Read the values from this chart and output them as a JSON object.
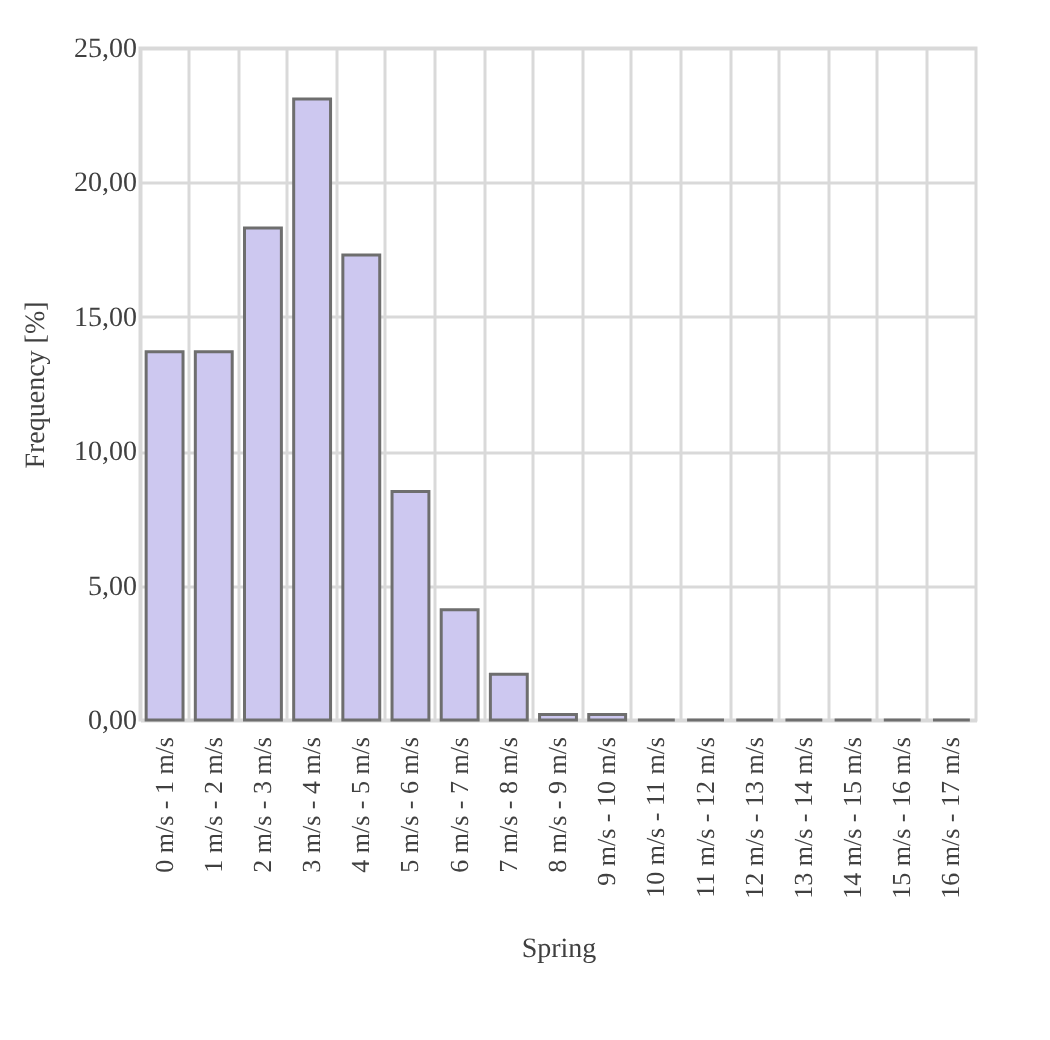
{
  "chart_data": {
    "type": "bar",
    "xlabel": "Spring",
    "ylabel": "Frequency [%]",
    "categories": [
      "0 m/s - 1 m/s",
      "1 m/s - 2 m/s",
      "2 m/s - 3 m/s",
      "3 m/s - 4 m/s",
      "4 m/s - 5 m/s",
      "5 m/s - 6 m/s",
      "6 m/s - 7 m/s",
      "7 m/s - 8 m/s",
      "8 m/s - 9 m/s",
      "9 m/s - 10 m/s",
      "10 m/s - 11 m/s",
      "11 m/s - 12 m/s",
      "12 m/s - 13 m/s",
      "13 m/s - 14 m/s",
      "14 m/s - 15 m/s",
      "15 m/s - 16 m/s",
      "16 m/s - 17 m/s"
    ],
    "values": [
      13.7,
      13.7,
      18.3,
      23.1,
      17.3,
      8.5,
      4.1,
      1.7,
      0.2,
      0.2,
      0,
      0,
      0,
      0,
      0,
      0,
      0
    ],
    "color": "#cdc8f0",
    "ylim": [
      0,
      25
    ],
    "yticks": [
      {
        "value": 0,
        "label": "0,00"
      },
      {
        "value": 5,
        "label": "5,00"
      },
      {
        "value": 10,
        "label": "10,00"
      },
      {
        "value": 15,
        "label": "15,00"
      },
      {
        "value": 20,
        "label": "20,00"
      },
      {
        "value": 25,
        "label": "25,00"
      }
    ],
    "grid": true
  }
}
